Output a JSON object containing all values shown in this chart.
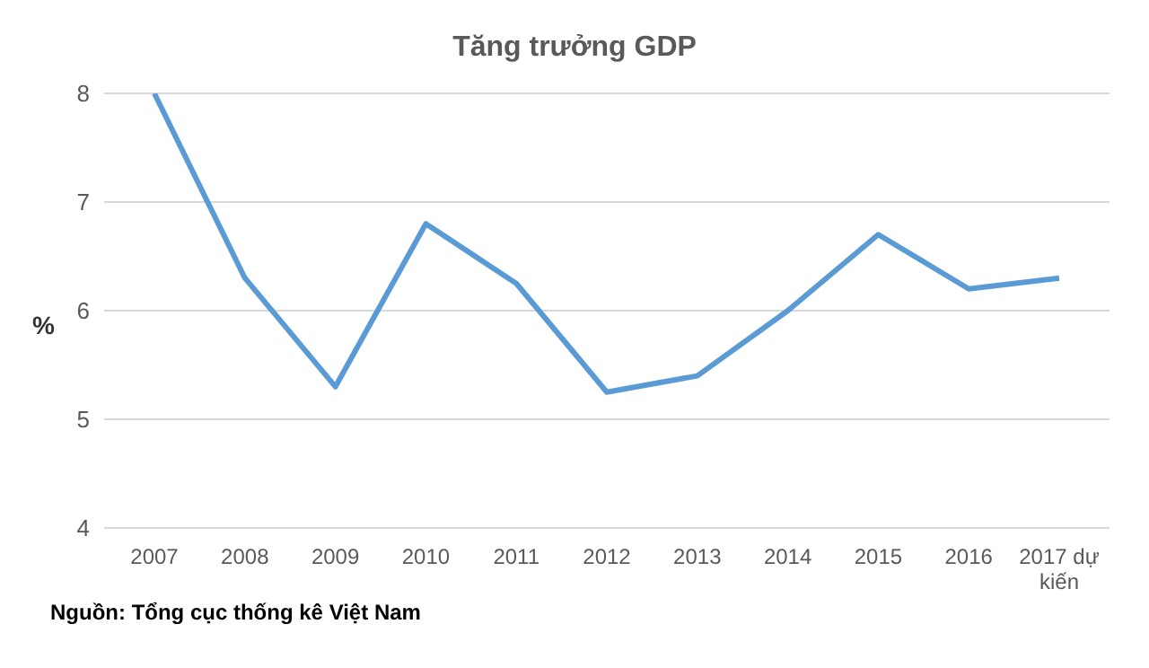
{
  "chart_data": {
    "type": "line",
    "title": "Tăng trưởng GDP",
    "ylabel": "%",
    "categories": [
      "2007",
      "2008",
      "2009",
      "2010",
      "2011",
      "2012",
      "2013",
      "2014",
      "2015",
      "2016",
      "2017 dự kiến"
    ],
    "series": [
      {
        "color": "#5b9bd5",
        "values": [
          8,
          6.3,
          5.3,
          6.8,
          6.25,
          5.25,
          5.4,
          6.0,
          6.7,
          6.2,
          6.3
        ]
      }
    ],
    "ylim": [
      4,
      8
    ],
    "yticks": [
      4,
      5,
      6,
      7,
      8
    ],
    "grid": "y",
    "legend": false,
    "marker": "none",
    "line_style": "solid",
    "annotations": [
      "Nguồn: Tổng cục thống kê Việt Nam"
    ]
  }
}
